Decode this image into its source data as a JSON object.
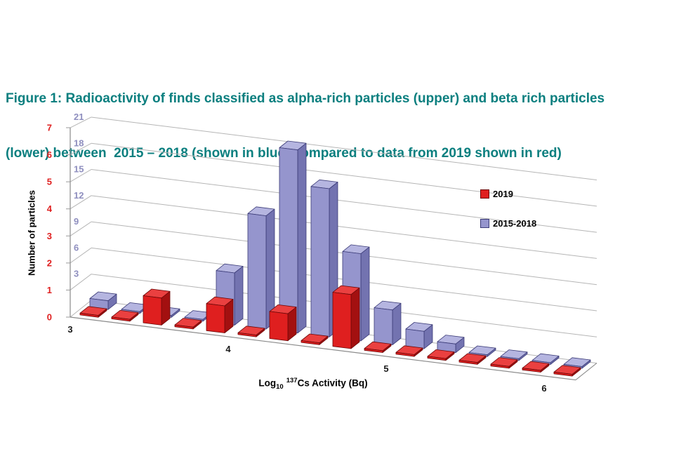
{
  "title": {
    "line1": "Figure 1: Radioactivity of finds classified as alpha-rich particles (upper) and beta rich particles",
    "line2": "(lower) between  2015 – 2018 (shown in blue) compared to data from 2019 shown in red)",
    "color": "#0b7f7f"
  },
  "legend": [
    {
      "label": "2019",
      "color": "#df1f1f",
      "outline": "#6e0808"
    },
    {
      "label": "2015-2018",
      "color": "#9595cd",
      "outline": "#3c3c78"
    }
  ],
  "chart_data": {
    "type": "bar",
    "projection": "3d",
    "title": "Figure 1: Radioactivity of finds classified as alpha-rich particles (upper) and beta rich particles (lower) between 2015 – 2018 (shown in blue) compared to data from 2019 shown in red)",
    "xlabel": {
      "pre": "Log",
      "sub": "10",
      "sup": "137",
      "post": "Cs Activity (Bq)"
    },
    "ylabel": "Number of particles",
    "x": [
      3.0,
      3.2,
      3.4,
      3.6,
      3.8,
      4.0,
      4.2,
      4.4,
      4.6,
      4.8,
      5.0,
      5.2,
      5.4,
      5.6,
      5.8,
      6.0
    ],
    "x_ticks": [
      3,
      4,
      5,
      6
    ],
    "xlim": [
      3,
      6
    ],
    "series": [
      {
        "name": "2019",
        "axis": "left",
        "color": "#df1f1f",
        "color_top": "#ea4040",
        "color_side": "#a31010",
        "outline": "#6e0808",
        "values": [
          0,
          0,
          1,
          0,
          1,
          0,
          1,
          0,
          2,
          0,
          0,
          0,
          0,
          0,
          0,
          0
        ]
      },
      {
        "name": "2015-2018",
        "axis": "right",
        "color": "#9595cd",
        "color_top": "#b5b5e0",
        "color_side": "#7373b0",
        "outline": "#3c3c78",
        "values": [
          1,
          0,
          0,
          0,
          6,
          13,
          21,
          17,
          10,
          4,
          2,
          1,
          0,
          0,
          0,
          0
        ]
      }
    ],
    "y_left": {
      "ticks": [
        0,
        1,
        2,
        3,
        4,
        5,
        6,
        7
      ],
      "lim": [
        0,
        7
      ],
      "color": "#df1f1f"
    },
    "y_right": {
      "ticks": [
        3,
        6,
        9,
        12,
        15,
        18,
        21
      ],
      "lim": [
        0,
        21
      ],
      "color": "#8f8fbf"
    },
    "grid": true,
    "legend_position": "right"
  }
}
